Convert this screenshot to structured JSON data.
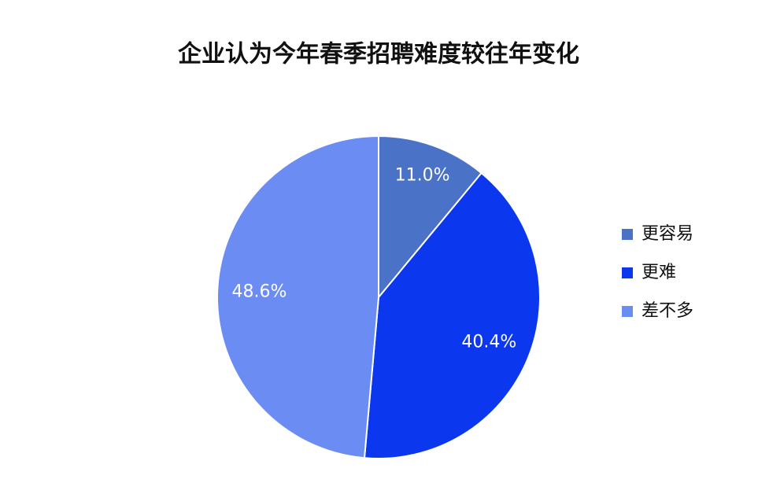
{
  "chart_data": {
    "type": "pie",
    "title": "企业认为今年春季招聘难度较往年变化",
    "categories": [
      "更容易",
      "更难",
      "差不多"
    ],
    "values": [
      11.0,
      40.4,
      48.6
    ],
    "value_labels": [
      "11.0%",
      "40.4%",
      "48.6%"
    ],
    "colors": [
      "#4a73c8",
      "#0b37ef",
      "#6a8cf3"
    ],
    "legend": "right"
  }
}
